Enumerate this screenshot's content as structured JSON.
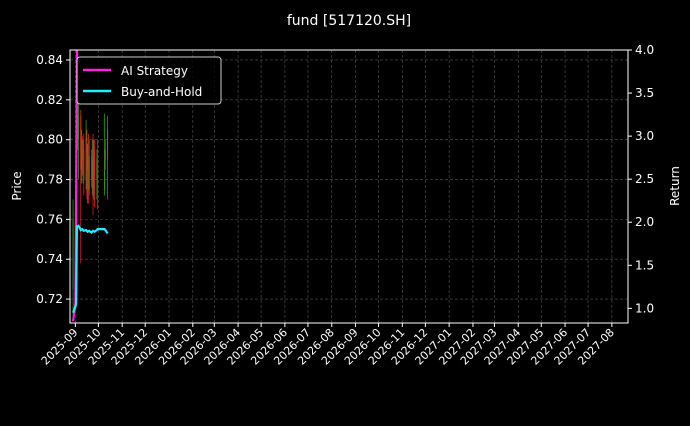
{
  "chart_data": {
    "type": "candlestick+line",
    "title": "fund [517120.SH]",
    "ylabel_left": "Price",
    "ylabel_right": "Return",
    "ylim_left": [
      0.708,
      0.845
    ],
    "ylim_right": [
      0.83,
      4.0
    ],
    "xlim": [
      "2025-08-25",
      "2027-08-22"
    ],
    "grid": true,
    "legend_placement": "top-left",
    "yticks_left": [
      "0.72",
      "0.74",
      "0.76",
      "0.78",
      "0.80",
      "0.82",
      "0.84"
    ],
    "yticks_right": [
      "1.0",
      "1.5",
      "2.0",
      "2.5",
      "3.0",
      "3.5",
      "4.0"
    ],
    "xticks": [
      "2025-09",
      "2025-10",
      "2025-11",
      "2025-12",
      "2026-01",
      "2026-02",
      "2026-03",
      "2026-04",
      "2026-05",
      "2026-06",
      "2026-07",
      "2026-08",
      "2026-09",
      "2026-10",
      "2026-11",
      "2026-12",
      "2027-01",
      "2027-02",
      "2027-03",
      "2027-04",
      "2027-05",
      "2027-06",
      "2027-07",
      "2027-08"
    ],
    "colors": {
      "up": "#1f9a1f",
      "down": "#e02020",
      "strategy": "#ff22dd",
      "buyhold": "#22eeff",
      "grid": "#555555"
    },
    "candles": [
      [
        "2025-08-29",
        0.725,
        0.76,
        0.712,
        0.77
      ],
      [
        "2025-09-01",
        0.765,
        0.745,
        0.74,
        0.77
      ],
      [
        "2025-09-02",
        0.745,
        0.79,
        0.74,
        0.81
      ],
      [
        "2025-09-03",
        0.79,
        0.82,
        0.785,
        0.84
      ],
      [
        "2025-09-04",
        0.82,
        0.8,
        0.795,
        0.83
      ],
      [
        "2025-09-05",
        0.8,
        0.812,
        0.78,
        0.82
      ],
      [
        "2025-09-08",
        0.812,
        0.785,
        0.738,
        0.815
      ],
      [
        "2025-09-09",
        0.785,
        0.8,
        0.778,
        0.805
      ],
      [
        "2025-09-10",
        0.8,
        0.79,
        0.782,
        0.802
      ],
      [
        "2025-09-11",
        0.79,
        0.795,
        0.778,
        0.8
      ],
      [
        "2025-09-12",
        0.795,
        0.78,
        0.772,
        0.803
      ],
      [
        "2025-09-15",
        0.78,
        0.8,
        0.775,
        0.81
      ],
      [
        "2025-09-16",
        0.8,
        0.785,
        0.77,
        0.805
      ],
      [
        "2025-09-17",
        0.785,
        0.79,
        0.768,
        0.798
      ],
      [
        "2025-09-18",
        0.79,
        0.775,
        0.768,
        0.803
      ],
      [
        "2025-09-19",
        0.775,
        0.792,
        0.772,
        0.8
      ],
      [
        "2025-09-22",
        0.792,
        0.78,
        0.776,
        0.795
      ],
      [
        "2025-09-23",
        0.78,
        0.79,
        0.772,
        0.8
      ],
      [
        "2025-09-24",
        0.79,
        0.775,
        0.762,
        0.803
      ],
      [
        "2025-09-25",
        0.775,
        0.795,
        0.77,
        0.8
      ],
      [
        "2025-09-26",
        0.795,
        0.78,
        0.766,
        0.8
      ],
      [
        "2025-09-29",
        0.78,
        0.79,
        0.77,
        0.795
      ],
      [
        "2025-09-30",
        0.79,
        0.775,
        0.765,
        0.8
      ],
      [
        "2025-10-09",
        0.775,
        0.795,
        0.772,
        0.813
      ],
      [
        "2025-10-10",
        0.795,
        0.79,
        0.785,
        0.8
      ],
      [
        "2025-10-13",
        0.79,
        0.805,
        0.77,
        0.812
      ]
    ],
    "series": [
      {
        "name": "AI Strategy",
        "x": [
          "2025-08-29",
          "2025-09-01",
          "2025-09-02",
          "2025-09-03",
          "2025-09-04"
        ],
        "y": [
          0.85,
          1.05,
          2.2,
          3.8,
          4.6
        ]
      },
      {
        "name": "Buy-and-Hold",
        "x": [
          "2025-08-29",
          "2025-09-01",
          "2025-09-02",
          "2025-09-03",
          "2025-09-05",
          "2025-09-08",
          "2025-09-10",
          "2025-09-12",
          "2025-09-15",
          "2025-09-17",
          "2025-09-19",
          "2025-09-22",
          "2025-09-24",
          "2025-09-26",
          "2025-09-29",
          "2025-09-30",
          "2025-10-09",
          "2025-10-10",
          "2025-10-13"
        ],
        "y": [
          0.95,
          1.02,
          1.06,
          1.95,
          1.96,
          1.91,
          1.92,
          1.9,
          1.91,
          1.89,
          1.9,
          1.88,
          1.9,
          1.89,
          1.91,
          1.92,
          1.92,
          1.91,
          1.87
        ]
      }
    ]
  }
}
